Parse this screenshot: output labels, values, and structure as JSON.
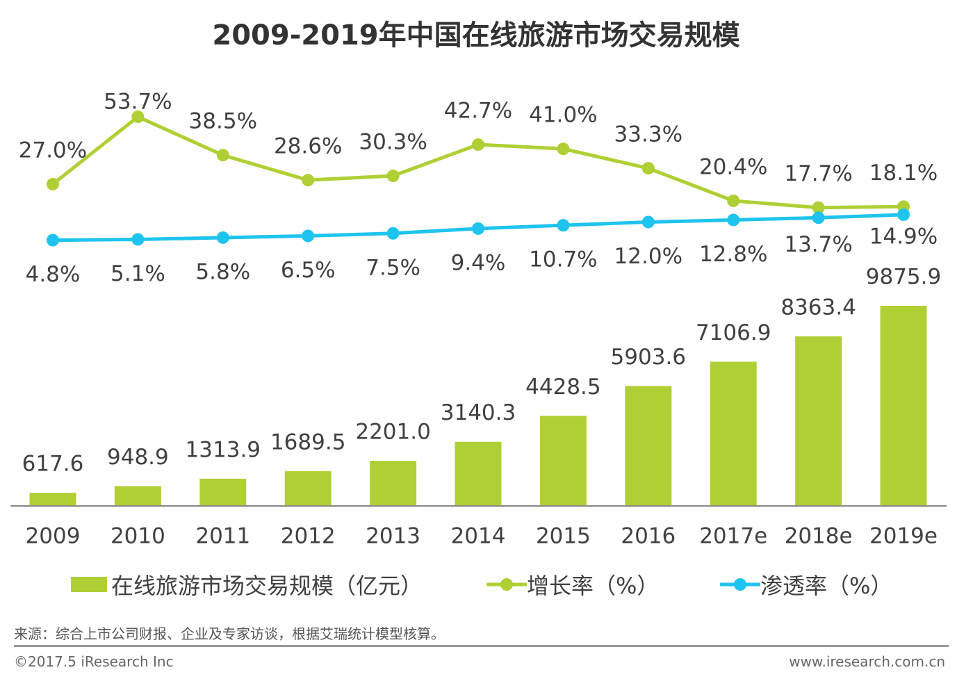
{
  "title": "2009-2019年中国在线旅游市场交易规模",
  "chart_data": {
    "type": "bar+line",
    "title": "2009-2019年中国在线旅游市场交易规模",
    "categories": [
      "2009",
      "2010",
      "2011",
      "2012",
      "2013",
      "2014",
      "2015",
      "2016",
      "2017e",
      "2018e",
      "2019e"
    ],
    "series": [
      {
        "name": "在线旅游市场交易规模（亿元）",
        "type": "bar",
        "color": "#b0cf34",
        "values": [
          617.6,
          948.9,
          1313.9,
          1689.5,
          2201.0,
          3140.3,
          4428.5,
          5903.6,
          7106.9,
          8363.4,
          9875.9
        ],
        "labels": [
          "617.6",
          "948.9",
          "1313.9",
          "1689.5",
          "2201.0",
          "3140.3",
          "4428.5",
          "5903.6",
          "7106.9",
          "8363.4",
          "9875.9"
        ]
      },
      {
        "name": "增长率（%）",
        "type": "line",
        "color": "#b0cf34",
        "values": [
          27.0,
          53.7,
          38.5,
          28.6,
          30.3,
          42.7,
          41.0,
          33.3,
          20.4,
          17.7,
          18.1
        ],
        "labels": [
          "27.0%",
          "53.7%",
          "38.5%",
          "28.6%",
          "30.3%",
          "42.7%",
          "41.0%",
          "33.3%",
          "20.4%",
          "17.7%",
          "18.1%"
        ]
      },
      {
        "name": "渗透率（%）",
        "type": "line",
        "color": "#1ec4ee",
        "values": [
          4.8,
          5.1,
          5.8,
          6.5,
          7.5,
          9.4,
          10.7,
          12.0,
          12.8,
          13.7,
          14.9
        ],
        "labels": [
          "4.8%",
          "5.1%",
          "5.8%",
          "6.5%",
          "7.5%",
          "9.4%",
          "10.7%",
          "12.0%",
          "12.8%",
          "13.7%",
          "14.9%"
        ]
      }
    ],
    "grid": false,
    "legend_placement": "bottom"
  },
  "legend": [
    "在线旅游市场交易规模（亿元）",
    "增长率（%）",
    "渗透率（%）"
  ],
  "source": "来源：综合上市公司财报、企业及专家访谈，根据艾瑞统计模型核算。",
  "copyright": "©2017.5 iResearch Inc",
  "website": "www.iresearch.com.cn"
}
